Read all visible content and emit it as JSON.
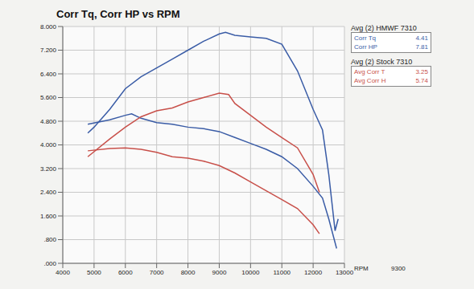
{
  "chart_data": {
    "type": "line",
    "title": "Corr Tq, Corr HP vs RPM",
    "x_label": "RPM",
    "annotation": "9300",
    "grid": true,
    "legend": "right",
    "xlim": [
      4000,
      13000
    ],
    "xticks": [
      4000,
      5000,
      6000,
      7000,
      8000,
      9000,
      10000,
      11000,
      12000,
      13000
    ],
    "ylim": [
      0,
      8
    ],
    "yticks": [
      {
        "value": 0,
        "label": ".000"
      },
      {
        "value": 0.8,
        "label": ".800"
      },
      {
        "value": 1.6,
        "label": "1.600"
      },
      {
        "value": 2.4,
        "label": "2.400"
      },
      {
        "value": 3.2,
        "label": "3.200"
      },
      {
        "value": 4,
        "label": "4.000"
      },
      {
        "value": 4.8,
        "label": "4.800"
      },
      {
        "value": 5.6,
        "label": "5.600"
      },
      {
        "value": 6.4,
        "label": "6.400"
      },
      {
        "value": 7.2,
        "label": "7.200"
      },
      {
        "value": 8,
        "label": "8.000"
      }
    ],
    "series": [
      {
        "name": "Corr Tq",
        "group": "Avg (2) HMWF 7310",
        "avg": 4.41,
        "color": "#3a5ca6",
        "x": [
          4800,
          5500,
          6000,
          6200,
          6500,
          7000,
          7500,
          8000,
          8500,
          9000,
          9500,
          10000,
          10500,
          11000,
          11500,
          12000,
          12300,
          12500,
          12750
        ],
        "values": [
          4.7,
          4.85,
          5.0,
          5.05,
          4.9,
          4.75,
          4.7,
          4.6,
          4.55,
          4.45,
          4.25,
          4.05,
          3.85,
          3.6,
          3.2,
          2.6,
          2.2,
          1.5,
          0.5
        ]
      },
      {
        "name": "Corr HP",
        "group": "Avg (2) HMWF 7310",
        "avg": 7.81,
        "color": "#3a5ca6",
        "x": [
          4800,
          5000,
          5500,
          6000,
          6500,
          7000,
          7500,
          8000,
          8500,
          9000,
          9200,
          9500,
          10000,
          10500,
          11000,
          11500,
          12000,
          12300,
          12500,
          12700,
          12800
        ],
        "values": [
          4.4,
          4.6,
          5.2,
          5.9,
          6.3,
          6.6,
          6.9,
          7.2,
          7.5,
          7.75,
          7.8,
          7.7,
          7.65,
          7.6,
          7.4,
          6.5,
          5.2,
          4.5,
          3.0,
          1.1,
          1.5
        ]
      },
      {
        "name": "Avg Corr T",
        "group": "Avg (2) Stock 7310",
        "avg": 3.25,
        "color": "#c8504a",
        "x": [
          4800,
          5500,
          6000,
          6500,
          7000,
          7500,
          8000,
          8500,
          9000,
          9500,
          10000,
          10500,
          11000,
          11500,
          12000,
          12200
        ],
        "values": [
          3.8,
          3.88,
          3.9,
          3.85,
          3.75,
          3.6,
          3.55,
          3.45,
          3.3,
          3.05,
          2.75,
          2.45,
          2.15,
          1.85,
          1.3,
          1.0
        ]
      },
      {
        "name": "Avg Corr H",
        "group": "Avg (2) Stock 7310",
        "avg": 5.74,
        "color": "#c8504a",
        "x": [
          4800,
          5500,
          6000,
          6500,
          7000,
          7500,
          8000,
          8500,
          9000,
          9300,
          9500,
          10000,
          10500,
          11000,
          11500,
          12000,
          12200
        ],
        "values": [
          3.6,
          4.2,
          4.6,
          4.95,
          5.15,
          5.25,
          5.45,
          5.6,
          5.75,
          5.7,
          5.4,
          5.0,
          4.6,
          4.25,
          3.9,
          3.0,
          2.4
        ]
      }
    ]
  }
}
